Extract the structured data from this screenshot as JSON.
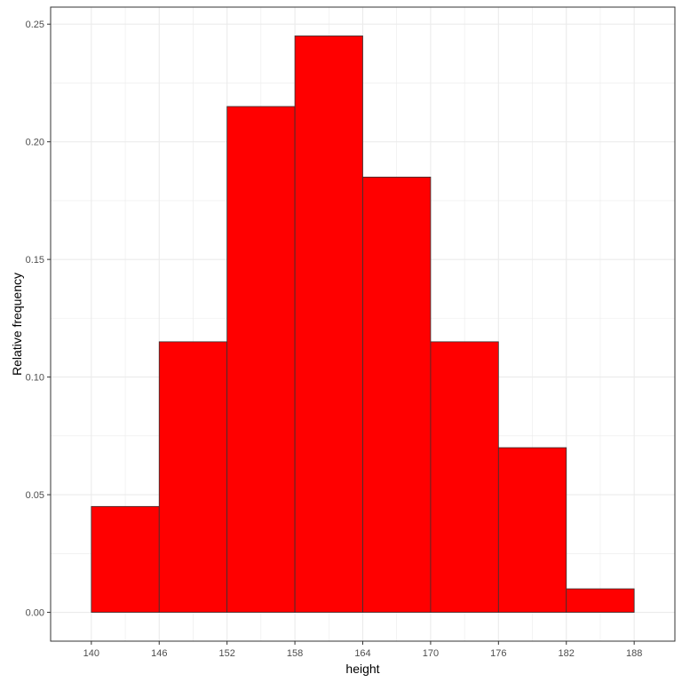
{
  "chart_data": {
    "type": "bar",
    "title": "",
    "xlabel": "height",
    "ylabel": "Relative frequency",
    "bins": [
      {
        "x0": 140,
        "x1": 146,
        "value": 0.045
      },
      {
        "x0": 146,
        "x1": 152,
        "value": 0.115
      },
      {
        "x0": 152,
        "x1": 158,
        "value": 0.215
      },
      {
        "x0": 158,
        "x1": 164,
        "value": 0.245
      },
      {
        "x0": 164,
        "x1": 170,
        "value": 0.185
      },
      {
        "x0": 170,
        "x1": 176,
        "value": 0.115
      },
      {
        "x0": 176,
        "x1": 182,
        "value": 0.07
      },
      {
        "x0": 182,
        "x1": 188,
        "value": 0.01
      }
    ],
    "xlim": [
      136.4,
      191.6
    ],
    "ylim": [
      -0.01225,
      0.25725
    ],
    "x_ticks": [
      140,
      146,
      152,
      158,
      164,
      170,
      176,
      182,
      188
    ],
    "x_tick_labels": [
      "140",
      "146",
      "152",
      "158",
      "164",
      "170",
      "176",
      "182",
      "188"
    ],
    "y_ticks": [
      0,
      0.05,
      0.1,
      0.15,
      0.2,
      0.25
    ],
    "y_tick_labels": [
      "0.00",
      "0.05",
      "0.10",
      "0.15",
      "0.20",
      "0.25"
    ],
    "grid": true,
    "legend": "none",
    "colors": {
      "bar_fill": "#ff0000",
      "bar_outline": "#333333",
      "grid": "#ebebeb",
      "panel_border": "#333333",
      "tick_label": "#4d4d4d"
    }
  }
}
